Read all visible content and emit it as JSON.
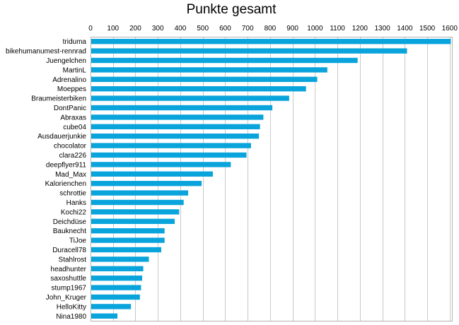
{
  "chart_data": {
    "type": "bar",
    "orientation": "horizontal",
    "title": "Punkte gesamt",
    "xlabel": "",
    "ylabel": "",
    "xlim": [
      0,
      1610
    ],
    "x_ticks": [
      0,
      100,
      200,
      300,
      400,
      500,
      600,
      700,
      800,
      900,
      1000,
      1100,
      1200,
      1300,
      1400,
      1500,
      1600
    ],
    "grid": true,
    "bar_color": "#0aa4dc",
    "categories": [
      "triduma",
      "bikehumanumest-rennrad",
      "Juengelchen",
      "MartinL",
      "Adrenalino",
      "Moeppes",
      "Braumeisterbiken",
      "DontPanic",
      "Abraxas",
      "cube04",
      "Ausdauerjunkie",
      "chocolator",
      "clara226",
      "deepflyer911",
      "Mad_Max",
      "Kalorienchen",
      "schrottie",
      "Hanks",
      "Kochi22",
      "Deichdüse",
      "Bauknecht",
      "TiJoe",
      "Duracell78",
      "Stahlrost",
      "headhunter",
      "saxoshuttle",
      "stump1967",
      "John_Kruger",
      "HelloKitty",
      "Nina1980"
    ],
    "values": [
      1605,
      1410,
      1190,
      1055,
      1010,
      960,
      885,
      810,
      770,
      755,
      750,
      715,
      695,
      625,
      545,
      495,
      435,
      415,
      395,
      375,
      330,
      330,
      315,
      260,
      235,
      230,
      225,
      220,
      180,
      120
    ]
  }
}
